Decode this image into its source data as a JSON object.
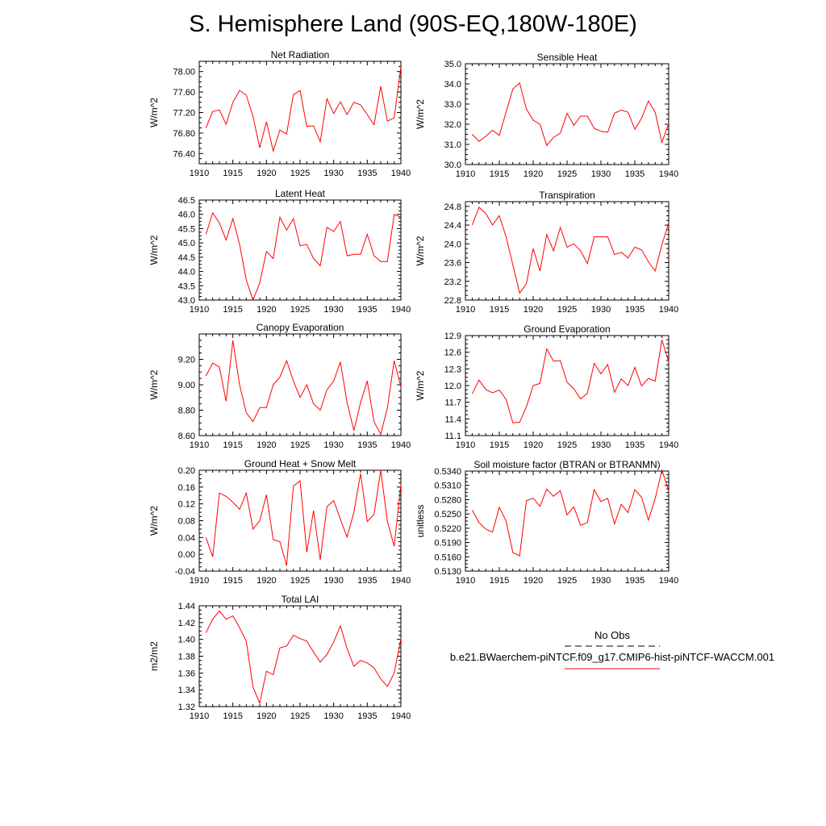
{
  "figure": {
    "title": "S. Hemisphere Land (90S-EQ,180W-180E)"
  },
  "colors": {
    "series": "#ff0000",
    "obs": "#000000"
  },
  "legend": {
    "obs_label": "No Obs",
    "case_label": "b.e21.BWaerchem-piNTCF.f09_g17.CMIP6-hist-piNTCF-WACCM.001"
  },
  "chart_data": [
    {
      "type": "line",
      "title": "Net Radiation",
      "ylabel": "W/m^2",
      "xlim": [
        1910,
        1940
      ],
      "ylim": [
        76.2,
        78.2
      ],
      "xticks": [
        1910,
        1915,
        1920,
        1925,
        1930,
        1935,
        1940
      ],
      "xticklabels": [
        "1910",
        "1915",
        "1920",
        "1925",
        "1930",
        "1935",
        "1940"
      ],
      "yticks": [
        76.4,
        76.8,
        77.2,
        77.6,
        78.0
      ],
      "yticklabels": [
        "76.40",
        "76.80",
        "77.20",
        "77.60",
        "78.00"
      ],
      "x": [
        1911,
        1912,
        1913,
        1914,
        1915,
        1916,
        1917,
        1918,
        1919,
        1920,
        1921,
        1922,
        1923,
        1924,
        1925,
        1926,
        1927,
        1928,
        1929,
        1930,
        1931,
        1932,
        1933,
        1934,
        1935,
        1936,
        1937,
        1938,
        1939,
        1940
      ],
      "series": [
        {
          "name": "b.e21.BWaerchem-piNTCF.f09_g17.CMIP6-hist-piNTCF-WACCM.001",
          "values": [
            76.9,
            77.22,
            77.25,
            76.97,
            77.4,
            77.63,
            77.54,
            77.12,
            76.51,
            77.02,
            76.45,
            76.86,
            76.78,
            77.55,
            77.63,
            76.93,
            76.94,
            76.63,
            77.47,
            77.18,
            77.41,
            77.16,
            77.4,
            77.35,
            77.16,
            76.96,
            77.71,
            77.03,
            77.1,
            78.1
          ]
        }
      ]
    },
    {
      "type": "line",
      "title": "Sensible Heat",
      "ylabel": "W/m^2",
      "xlim": [
        1910,
        1940
      ],
      "ylim": [
        30.0,
        35.0
      ],
      "xticks": [
        1910,
        1915,
        1920,
        1925,
        1930,
        1935,
        1940
      ],
      "xticklabels": [
        "1910",
        "1915",
        "1920",
        "1925",
        "1930",
        "1935",
        "1940"
      ],
      "yticks": [
        30.0,
        31.0,
        32.0,
        33.0,
        34.0,
        35.0
      ],
      "yticklabels": [
        "30.0",
        "31.0",
        "32.0",
        "33.0",
        "34.0",
        "35.0"
      ],
      "x": [
        1911,
        1912,
        1913,
        1914,
        1915,
        1916,
        1917,
        1918,
        1919,
        1920,
        1921,
        1922,
        1923,
        1924,
        1925,
        1926,
        1927,
        1928,
        1929,
        1930,
        1931,
        1932,
        1933,
        1934,
        1935,
        1936,
        1937,
        1938,
        1939,
        1940
      ],
      "series": [
        {
          "name": "b.e21.BWaerchem-piNTCF.f09_g17.CMIP6-hist-piNTCF-WACCM.001",
          "values": [
            31.5,
            31.15,
            31.4,
            31.7,
            31.45,
            32.6,
            33.75,
            34.05,
            32.75,
            32.2,
            32.0,
            30.95,
            31.35,
            31.55,
            32.55,
            31.95,
            32.4,
            32.4,
            31.8,
            31.65,
            31.6,
            32.55,
            32.7,
            32.6,
            31.75,
            32.3,
            33.15,
            32.6,
            31.1,
            32.05
          ]
        }
      ]
    },
    {
      "type": "line",
      "title": "Latent Heat",
      "ylabel": "W/m^2",
      "xlim": [
        1910,
        1940
      ],
      "ylim": [
        43.0,
        46.5
      ],
      "xticks": [
        1910,
        1915,
        1920,
        1925,
        1930,
        1935,
        1940
      ],
      "xticklabels": [
        "1910",
        "1915",
        "1920",
        "1925",
        "1930",
        "1935",
        "1940"
      ],
      "yticks": [
        43.0,
        43.5,
        44.0,
        44.5,
        45.0,
        45.5,
        46.0,
        46.5
      ],
      "yticklabels": [
        "43.0",
        "43.5",
        "44.0",
        "44.5",
        "45.0",
        "45.5",
        "46.0",
        "46.5"
      ],
      "x": [
        1911,
        1912,
        1913,
        1914,
        1915,
        1916,
        1917,
        1918,
        1919,
        1920,
        1921,
        1922,
        1923,
        1924,
        1925,
        1926,
        1927,
        1928,
        1929,
        1930,
        1931,
        1932,
        1933,
        1934,
        1935,
        1936,
        1937,
        1938,
        1939,
        1940
      ],
      "series": [
        {
          "name": "b.e21.BWaerchem-piNTCF.f09_g17.CMIP6-hist-piNTCF-WACCM.001",
          "values": [
            45.3,
            46.05,
            45.7,
            45.1,
            45.85,
            44.95,
            43.7,
            43.0,
            43.6,
            44.7,
            44.45,
            45.9,
            45.45,
            45.85,
            44.9,
            44.95,
            44.45,
            44.2,
            45.55,
            45.4,
            45.75,
            44.55,
            44.6,
            44.6,
            45.3,
            44.55,
            44.35,
            44.35,
            46.0,
            45.9
          ]
        }
      ]
    },
    {
      "type": "line",
      "title": "Transpiration",
      "ylabel": "W/m^2",
      "xlim": [
        1910,
        1940
      ],
      "ylim": [
        22.8,
        24.9
      ],
      "xticks": [
        1910,
        1915,
        1920,
        1925,
        1930,
        1935,
        1940
      ],
      "xticklabels": [
        "1910",
        "1915",
        "1920",
        "1925",
        "1930",
        "1935",
        "1940"
      ],
      "yticks": [
        22.8,
        23.2,
        23.6,
        24.0,
        24.4,
        24.8
      ],
      "yticklabels": [
        "22.8",
        "23.2",
        "23.6",
        "24.0",
        "24.4",
        "24.8"
      ],
      "x": [
        1911,
        1912,
        1913,
        1914,
        1915,
        1916,
        1917,
        1918,
        1919,
        1920,
        1921,
        1922,
        1923,
        1924,
        1925,
        1926,
        1927,
        1928,
        1929,
        1930,
        1931,
        1932,
        1933,
        1934,
        1935,
        1936,
        1937,
        1938,
        1939,
        1940
      ],
      "series": [
        {
          "name": "b.e21.BWaerchem-piNTCF.f09_g17.CMIP6-hist-piNTCF-WACCM.001",
          "values": [
            24.4,
            24.78,
            24.65,
            24.4,
            24.6,
            24.15,
            23.55,
            22.95,
            23.15,
            23.9,
            23.42,
            24.2,
            23.85,
            24.35,
            23.93,
            24.0,
            23.85,
            23.58,
            24.15,
            24.15,
            24.15,
            23.77,
            23.82,
            23.7,
            23.93,
            23.87,
            23.62,
            23.42,
            23.98,
            24.45
          ]
        }
      ]
    },
    {
      "type": "line",
      "title": "Canopy Evaporation",
      "ylabel": "W/m^2",
      "xlim": [
        1910,
        1940
      ],
      "ylim": [
        8.6,
        9.4
      ],
      "xticks": [
        1910,
        1915,
        1920,
        1925,
        1930,
        1935,
        1940
      ],
      "xticklabels": [
        "1910",
        "1915",
        "1920",
        "1925",
        "1930",
        "1935",
        "1940"
      ],
      "yticks": [
        8.6,
        8.8,
        9.0,
        9.2
      ],
      "yticklabels": [
        "8.60",
        "8.80",
        "9.00",
        "9.20"
      ],
      "x": [
        1911,
        1912,
        1913,
        1914,
        1915,
        1916,
        1917,
        1918,
        1919,
        1920,
        1921,
        1922,
        1923,
        1924,
        1925,
        1926,
        1927,
        1928,
        1929,
        1930,
        1931,
        1932,
        1933,
        1934,
        1935,
        1936,
        1937,
        1938,
        1939,
        1940
      ],
      "series": [
        {
          "name": "b.e21.BWaerchem-piNTCF.f09_g17.CMIP6-hist-piNTCF-WACCM.001",
          "values": [
            9.07,
            9.17,
            9.14,
            8.87,
            9.35,
            9.0,
            8.78,
            8.71,
            8.82,
            8.82,
            9.0,
            9.06,
            9.19,
            9.03,
            8.9,
            9.0,
            8.85,
            8.8,
            8.96,
            9.03,
            9.18,
            8.86,
            8.64,
            8.86,
            9.03,
            8.71,
            8.61,
            8.82,
            9.19,
            8.98
          ]
        }
      ]
    },
    {
      "type": "line",
      "title": "Ground Evaporation",
      "ylabel": "W/m^2",
      "xlim": [
        1910,
        1940
      ],
      "ylim": [
        11.1,
        12.9
      ],
      "xticks": [
        1910,
        1915,
        1920,
        1925,
        1930,
        1935,
        1940
      ],
      "xticklabels": [
        "1910",
        "1915",
        "1920",
        "1925",
        "1930",
        "1935",
        "1940"
      ],
      "yticks": [
        11.1,
        11.4,
        11.7,
        12.0,
        12.3,
        12.6,
        12.9
      ],
      "yticklabels": [
        "11.1",
        "11.4",
        "11.7",
        "12.0",
        "12.3",
        "12.6",
        "12.9"
      ],
      "x": [
        1911,
        1912,
        1913,
        1914,
        1915,
        1916,
        1917,
        1918,
        1919,
        1920,
        1921,
        1922,
        1923,
        1924,
        1925,
        1926,
        1927,
        1928,
        1929,
        1930,
        1931,
        1932,
        1933,
        1934,
        1935,
        1936,
        1937,
        1938,
        1939,
        1940
      ],
      "series": [
        {
          "name": "b.e21.BWaerchem-piNTCF.f09_g17.CMIP6-hist-piNTCF-WACCM.001",
          "values": [
            11.85,
            12.1,
            11.93,
            11.87,
            11.92,
            11.75,
            11.33,
            11.34,
            11.62,
            12.0,
            12.04,
            12.66,
            12.44,
            12.45,
            12.06,
            11.94,
            11.76,
            11.86,
            12.4,
            12.21,
            12.38,
            11.88,
            12.12,
            12.0,
            12.33,
            11.99,
            12.13,
            12.08,
            12.82,
            12.43
          ]
        }
      ]
    },
    {
      "type": "line",
      "title": "Ground Heat + Snow Melt",
      "ylabel": "W/m^2",
      "xlim": [
        1910,
        1940
      ],
      "ylim": [
        -0.04,
        0.2
      ],
      "xticks": [
        1910,
        1915,
        1920,
        1925,
        1930,
        1935,
        1940
      ],
      "xticklabels": [
        "1910",
        "1915",
        "1920",
        "1925",
        "1930",
        "1935",
        "1940"
      ],
      "yticks": [
        -0.04,
        0.0,
        0.04,
        0.08,
        0.12,
        0.16,
        0.2
      ],
      "yticklabels": [
        "-0.04",
        "0.00",
        "0.04",
        "0.08",
        "0.12",
        "0.16",
        "0.20"
      ],
      "x": [
        1911,
        1912,
        1913,
        1914,
        1915,
        1916,
        1917,
        1918,
        1919,
        1920,
        1921,
        1922,
        1923,
        1924,
        1925,
        1926,
        1927,
        1928,
        1929,
        1930,
        1931,
        1932,
        1933,
        1934,
        1935,
        1936,
        1937,
        1938,
        1939,
        1940
      ],
      "series": [
        {
          "name": "b.e21.BWaerchem-piNTCF.f09_g17.CMIP6-hist-piNTCF-WACCM.001",
          "values": [
            0.04,
            -0.006,
            0.146,
            0.138,
            0.124,
            0.107,
            0.146,
            0.06,
            0.08,
            0.142,
            0.035,
            0.03,
            -0.027,
            0.162,
            0.175,
            0.005,
            0.104,
            -0.013,
            0.113,
            0.128,
            0.083,
            0.041,
            0.1,
            0.192,
            0.078,
            0.095,
            0.2,
            0.078,
            0.019,
            0.168
          ]
        }
      ]
    },
    {
      "type": "line",
      "title": "Soil moisture factor (BTRAN or BTRANMN)",
      "ylabel": "unitless",
      "xlim": [
        1910,
        1940
      ],
      "ylim": [
        0.513,
        0.534
      ],
      "xticks": [
        1910,
        1915,
        1920,
        1925,
        1930,
        1935,
        1940
      ],
      "xticklabels": [
        "1910",
        "1915",
        "1920",
        "1925",
        "1930",
        "1935",
        "1940"
      ],
      "yticks": [
        0.513,
        0.516,
        0.519,
        0.522,
        0.525,
        0.528,
        0.531,
        0.534
      ],
      "yticklabels": [
        "0.5130",
        "0.5160",
        "0.5190",
        "0.5220",
        "0.5250",
        "0.5280",
        "0.5310",
        "0.5340"
      ],
      "x": [
        1911,
        1912,
        1913,
        1914,
        1915,
        1916,
        1917,
        1918,
        1919,
        1920,
        1921,
        1922,
        1923,
        1924,
        1925,
        1926,
        1927,
        1928,
        1929,
        1930,
        1931,
        1932,
        1933,
        1934,
        1935,
        1936,
        1937,
        1938,
        1939,
        1940
      ],
      "series": [
        {
          "name": "b.e21.BWaerchem-piNTCF.f09_g17.CMIP6-hist-piNTCF-WACCM.001",
          "values": [
            0.5258,
            0.5232,
            0.5218,
            0.5212,
            0.5264,
            0.5235,
            0.5169,
            0.5162,
            0.5278,
            0.5283,
            0.5266,
            0.5302,
            0.5287,
            0.5299,
            0.5248,
            0.5265,
            0.5226,
            0.5232,
            0.5301,
            0.5276,
            0.5283,
            0.5229,
            0.527,
            0.5253,
            0.5301,
            0.5285,
            0.5237,
            0.5282,
            0.5342,
            0.5298
          ]
        }
      ]
    },
    {
      "type": "line",
      "title": "Total LAI",
      "ylabel": "m2/m2",
      "xlim": [
        1910,
        1940
      ],
      "ylim": [
        1.32,
        1.44
      ],
      "xticks": [
        1910,
        1915,
        1920,
        1925,
        1930,
        1935,
        1940
      ],
      "xticklabels": [
        "1910",
        "1915",
        "1920",
        "1925",
        "1930",
        "1935",
        "1940"
      ],
      "yticks": [
        1.32,
        1.34,
        1.36,
        1.38,
        1.4,
        1.42,
        1.44
      ],
      "yticklabels": [
        "1.32",
        "1.34",
        "1.36",
        "1.38",
        "1.40",
        "1.42",
        "1.44"
      ],
      "x": [
        1911,
        1912,
        1913,
        1914,
        1915,
        1916,
        1917,
        1918,
        1919,
        1920,
        1921,
        1922,
        1923,
        1924,
        1925,
        1926,
        1927,
        1928,
        1929,
        1930,
        1931,
        1932,
        1933,
        1934,
        1935,
        1936,
        1937,
        1938,
        1939,
        1940
      ],
      "series": [
        {
          "name": "b.e21.BWaerchem-piNTCF.f09_g17.CMIP6-hist-piNTCF-WACCM.001",
          "values": [
            1.408,
            1.424,
            1.434,
            1.424,
            1.428,
            1.414,
            1.398,
            1.343,
            1.324,
            1.362,
            1.358,
            1.39,
            1.392,
            1.405,
            1.401,
            1.398,
            1.385,
            1.373,
            1.382,
            1.397,
            1.416,
            1.389,
            1.368,
            1.375,
            1.372,
            1.366,
            1.353,
            1.344,
            1.36,
            1.401
          ]
        }
      ]
    }
  ]
}
